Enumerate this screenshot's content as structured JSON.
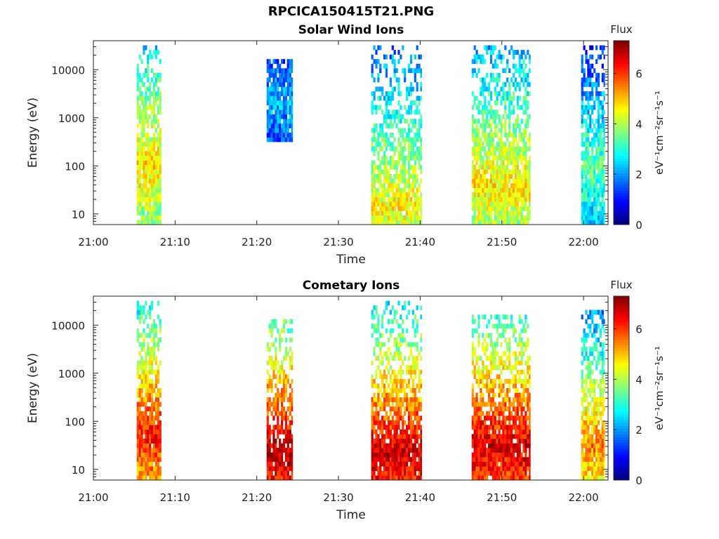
{
  "figure_title": "RPCICA150415T21.PNG",
  "chart_data": [
    {
      "type": "heatmap",
      "title": "Solar Wind Ions",
      "xlabel": "Time",
      "ylabel": "Energy (eV)",
      "x_ticks": [
        "21:00",
        "21:10",
        "21:20",
        "21:30",
        "21:40",
        "21:50",
        "22:00"
      ],
      "x_tick_minutes": [
        0,
        10,
        20,
        30,
        40,
        50,
        60
      ],
      "xlim_minutes": [
        0,
        63
      ],
      "y_scale": "log",
      "ylim": [
        6,
        40000
      ],
      "y_ticks": [
        "10",
        "100",
        "1000",
        "10000"
      ],
      "y_tick_values": [
        10,
        100,
        1000,
        10000
      ],
      "colorbar": {
        "title": "Flux",
        "label": "eV⁻¹cm⁻²sr⁻¹s⁻¹",
        "min": 0,
        "max": 7.3,
        "ticks": [
          "0",
          "2",
          "4",
          "6"
        ],
        "tick_values": [
          0,
          2,
          4,
          6
        ],
        "colormap": "jet"
      },
      "bursts": [
        {
          "t_start": 5.3,
          "t_end": 8.3,
          "e_max": 35000,
          "peak_flux": 4.8,
          "peak_e": 100
        },
        {
          "t_start": 21.2,
          "t_end": 24.4,
          "e_min": 350,
          "e_max": 17000,
          "peak_flux": 2.2,
          "peak_e": 2000
        },
        {
          "t_start": 34.0,
          "t_end": 40.2,
          "e_max": 35000,
          "peak_flux": 4.6,
          "peak_e": 15
        },
        {
          "t_start": 46.3,
          "t_end": 53.5,
          "e_max": 35000,
          "peak_flux": 4.7,
          "peak_e": 40
        },
        {
          "t_start": 59.7,
          "t_end": 62.6,
          "e_max": 30000,
          "peak_flux": 3.4,
          "peak_e": 100
        }
      ]
    },
    {
      "type": "heatmap",
      "title": "Cometary Ions",
      "xlabel": "Time",
      "ylabel": "Energy (eV)",
      "x_ticks": [
        "21:00",
        "21:10",
        "21:20",
        "21:30",
        "21:40",
        "21:50",
        "22:00"
      ],
      "x_tick_minutes": [
        0,
        10,
        20,
        30,
        40,
        50,
        60
      ],
      "xlim_minutes": [
        0,
        63
      ],
      "y_scale": "log",
      "ylim": [
        6,
        40000
      ],
      "y_ticks": [
        "10",
        "100",
        "1000",
        "10000"
      ],
      "y_tick_values": [
        10,
        100,
        1000,
        10000
      ],
      "colorbar": {
        "title": "Flux",
        "label": "eV⁻¹cm⁻²sr⁻¹s⁻¹",
        "min": 0,
        "max": 7.3,
        "ticks": [
          "0",
          "2",
          "4",
          "6"
        ],
        "tick_values": [
          0,
          2,
          4,
          6
        ],
        "colormap": "jet"
      },
      "bursts": [
        {
          "t_start": 5.3,
          "t_end": 8.3,
          "e_max": 30000,
          "peak_flux": 6.3,
          "peak_e": 50
        },
        {
          "t_start": 21.2,
          "t_end": 24.4,
          "e_max": 13000,
          "peak_flux": 7.0,
          "peak_e": 20
        },
        {
          "t_start": 34.0,
          "t_end": 40.2,
          "e_max": 35000,
          "peak_flux": 6.8,
          "peak_e": 20
        },
        {
          "t_start": 46.3,
          "t_end": 53.5,
          "e_max": 15000,
          "peak_flux": 6.7,
          "peak_e": 30
        },
        {
          "t_start": 59.7,
          "t_end": 62.6,
          "e_max": 20000,
          "peak_flux": 5.5,
          "peak_e": 30
        }
      ]
    }
  ]
}
